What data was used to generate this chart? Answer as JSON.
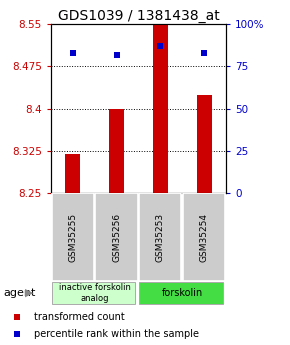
{
  "title": "GDS1039 / 1381438_at",
  "samples": [
    "GSM35255",
    "GSM35256",
    "GSM35253",
    "GSM35254"
  ],
  "bar_values": [
    8.32,
    8.4,
    8.55,
    8.425
  ],
  "percentile_values": [
    83,
    82,
    87,
    83
  ],
  "y_min": 8.25,
  "y_max": 8.55,
  "y_ticks": [
    8.25,
    8.325,
    8.4,
    8.475,
    8.55
  ],
  "y_tick_labels": [
    "8.25",
    "8.325",
    "8.4",
    "8.475",
    "8.55"
  ],
  "y2_ticks": [
    0,
    25,
    50,
    75,
    100
  ],
  "y2_tick_labels": [
    "0",
    "25",
    "50",
    "75",
    "100%"
  ],
  "bar_color": "#cc0000",
  "dot_color": "#0000cc",
  "group1_label": "inactive forskolin\nanalog",
  "group2_label": "forskolin",
  "group1_color": "#ccffcc",
  "group2_color": "#44dd44",
  "group1_samples": [
    0,
    1
  ],
  "group2_samples": [
    2,
    3
  ],
  "agent_label": "agent",
  "legend_bar_label": "transformed count",
  "legend_dot_label": "percentile rank within the sample",
  "title_fontsize": 10,
  "tick_fontsize": 7.5,
  "sample_fontsize": 6.5,
  "group_fontsize": 6,
  "legend_fontsize": 7
}
